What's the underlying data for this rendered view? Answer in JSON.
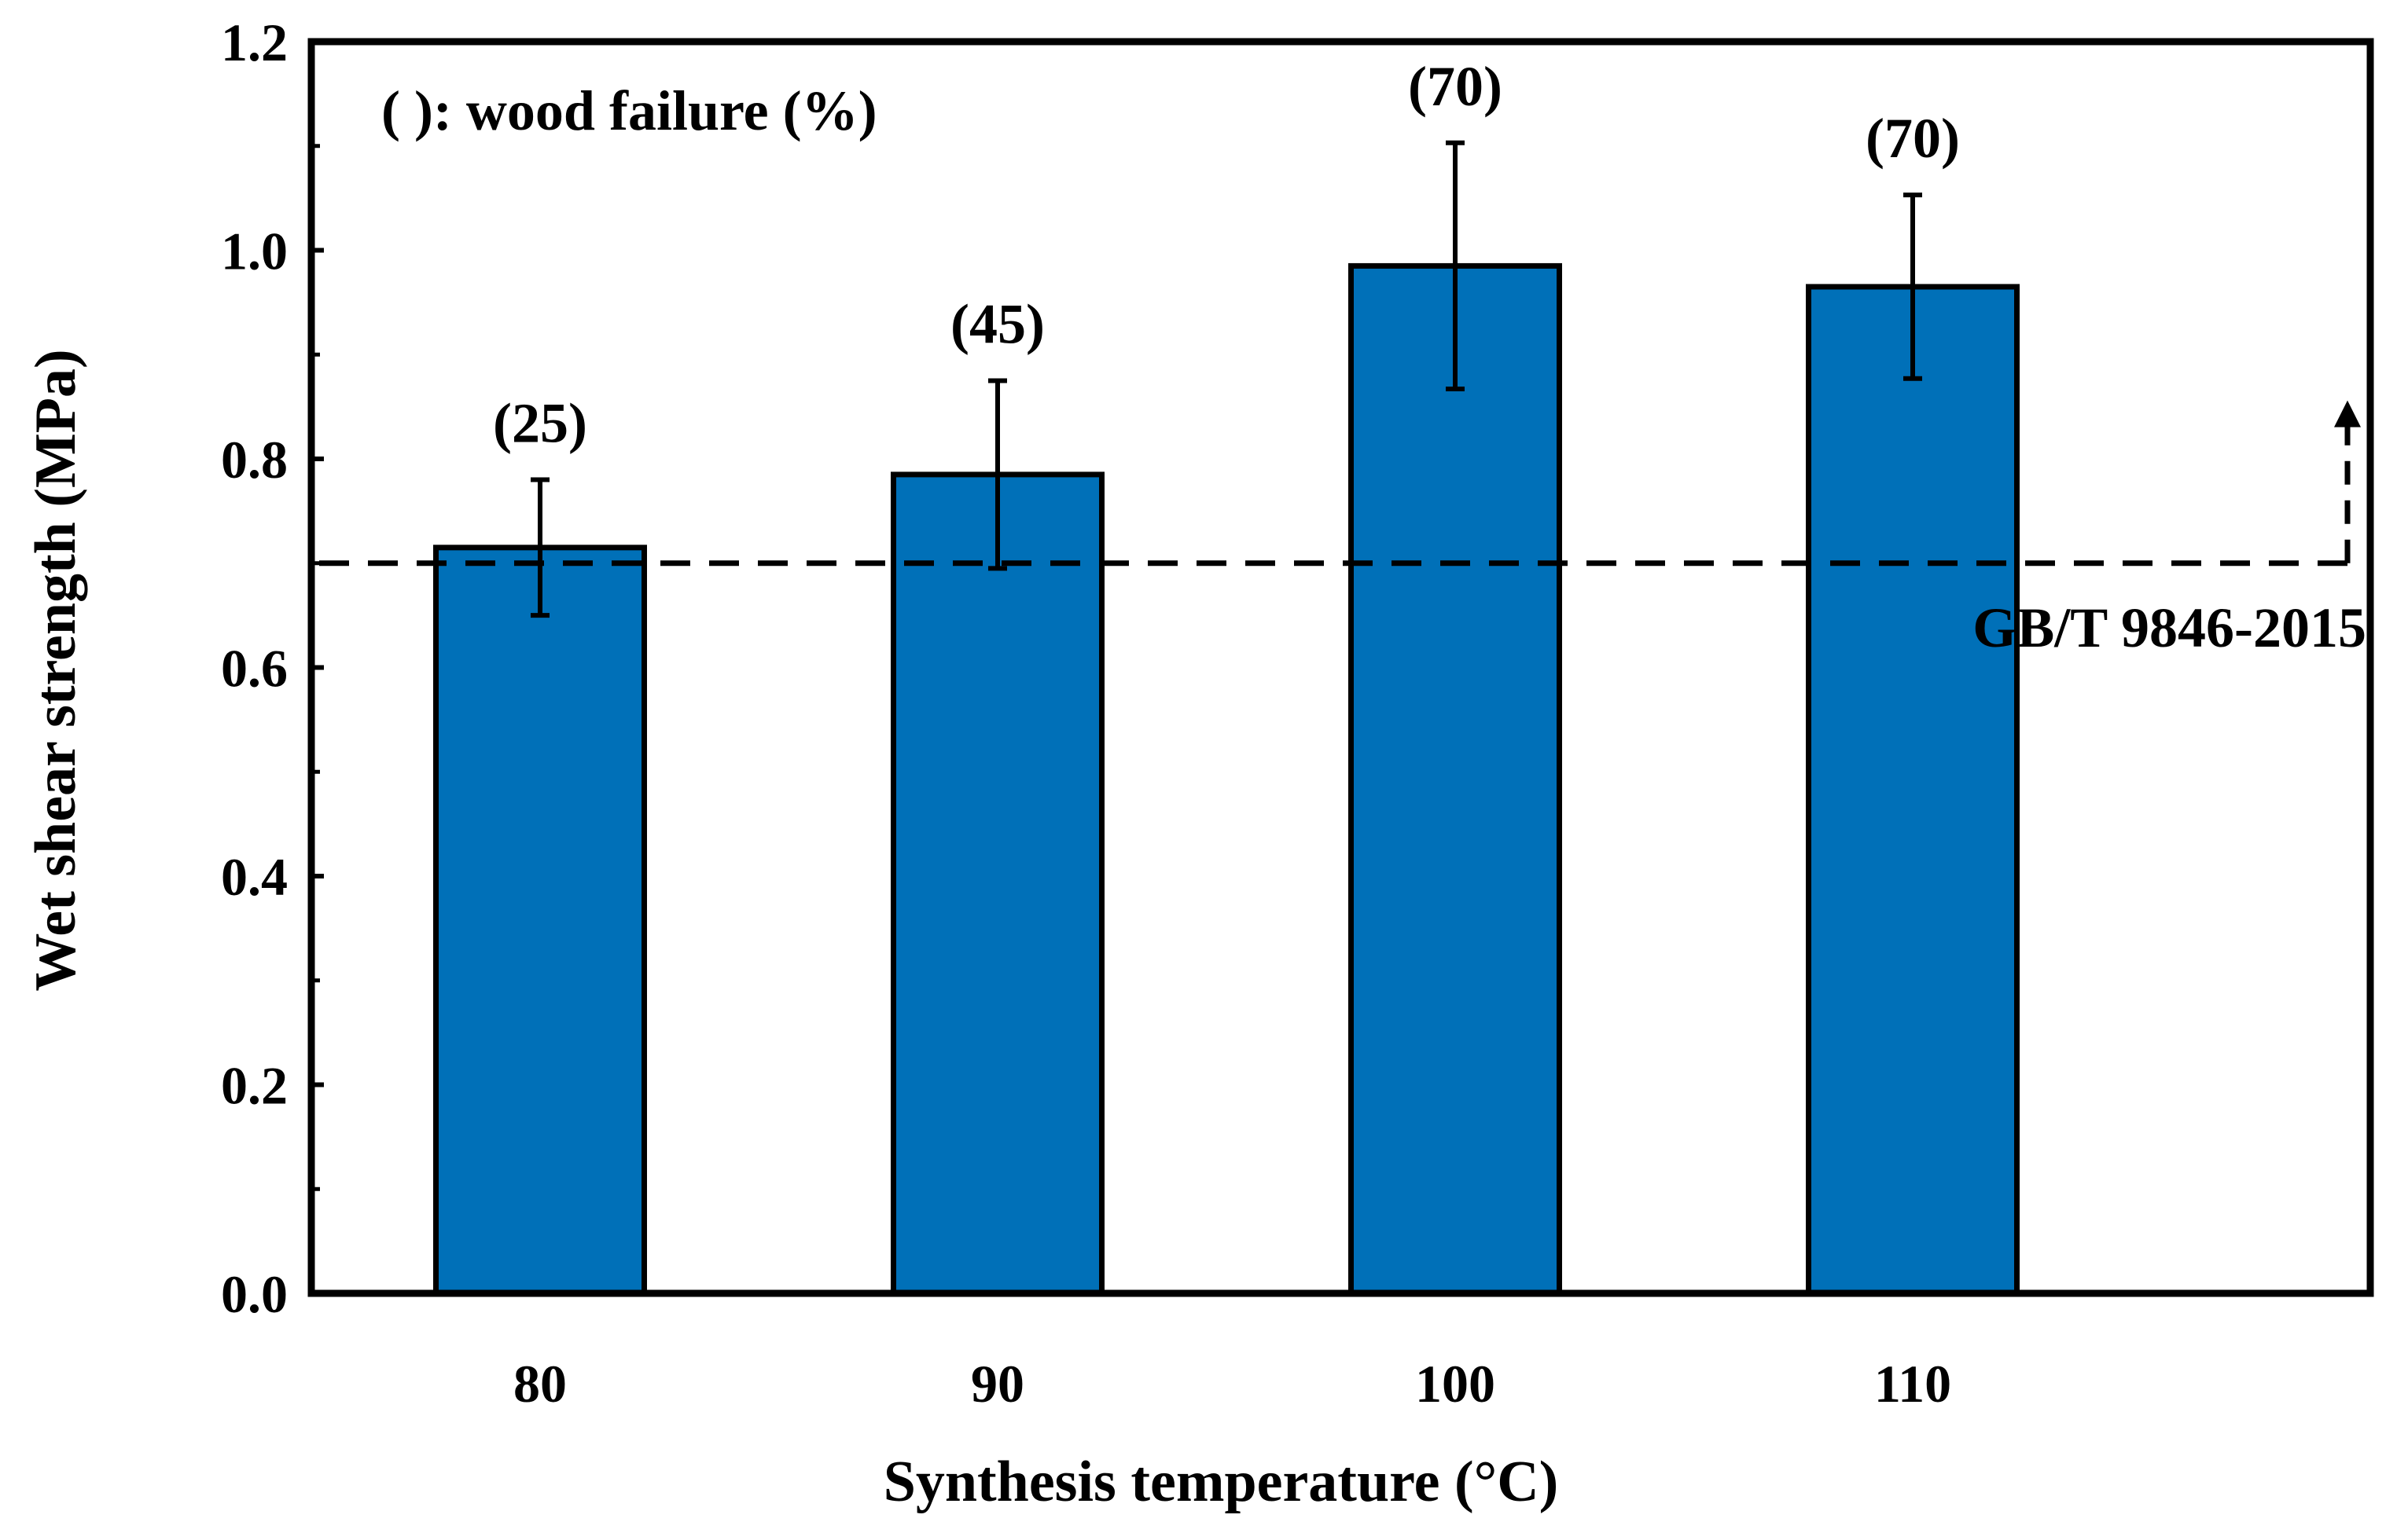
{
  "chart_data": {
    "type": "bar",
    "xlabel": "Synthesis temperature (°C)",
    "ylabel": "Wet shear strength (MPa)",
    "categories": [
      "80",
      "90",
      "100",
      "110"
    ],
    "values": [
      0.715,
      0.785,
      0.985,
      0.965
    ],
    "errors": [
      0.065,
      0.09,
      0.118,
      0.088
    ],
    "point_labels": [
      "(25)",
      "(45)",
      "(70)",
      "(70)"
    ],
    "ylim": [
      0,
      1.2
    ],
    "yticks": [
      0.0,
      0.2,
      0.4,
      0.6,
      0.8,
      1.0,
      1.2
    ],
    "ytick_labels": [
      "0.0",
      "0.2",
      "0.4",
      "0.6",
      "0.8",
      "1.0",
      "1.2"
    ],
    "reference_line": {
      "value": 0.7,
      "label": "GB/T 9846-2015"
    },
    "annotation": "( ): wood failure (%)",
    "grid": false,
    "colors": {
      "bar": "#0070B8",
      "bar_edge": "#000000",
      "axis": "#000000"
    }
  }
}
